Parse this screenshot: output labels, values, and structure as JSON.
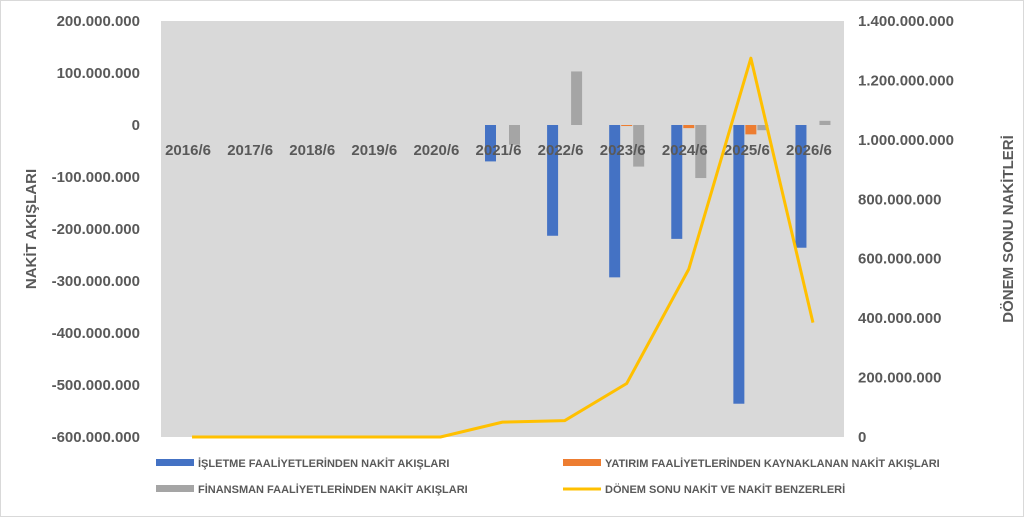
{
  "chart_data": {
    "type": "bar",
    "categories": [
      "2016/6",
      "2017/6",
      "2018/6",
      "2019/6",
      "2020/6",
      "2021/6",
      "2022/6",
      "2023/6",
      "2024/6",
      "2025/6",
      "2026/6"
    ],
    "ylabel": "NAKİT AKIŞLARI",
    "y2label": "DÖNEM SONU NAKİTLERİ",
    "ylim": [
      -600000000,
      200000000
    ],
    "y2lim": [
      0,
      1400000000
    ],
    "y_ticks": [
      {
        "value": 200000000,
        "label": "200.000.000"
      },
      {
        "value": 100000000,
        "label": "100.000.000"
      },
      {
        "value": 0,
        "label": "0"
      },
      {
        "value": -100000000,
        "label": "-100.000.000"
      },
      {
        "value": -200000000,
        "label": "-200.000.000"
      },
      {
        "value": -300000000,
        "label": "-300.000.000"
      },
      {
        "value": -400000000,
        "label": "-400.000.000"
      },
      {
        "value": -500000000,
        "label": "-500.000.000"
      },
      {
        "value": -600000000,
        "label": "-600.000.000"
      }
    ],
    "y2_ticks": [
      {
        "value": 1400000000,
        "label": "1.400.000.000"
      },
      {
        "value": 1200000000,
        "label": "1.200.000.000"
      },
      {
        "value": 1000000000,
        "label": "1.000.000.000"
      },
      {
        "value": 800000000,
        "label": "800.000.000"
      },
      {
        "value": 600000000,
        "label": "600.000.000"
      },
      {
        "value": 400000000,
        "label": "400.000.000"
      },
      {
        "value": 200000000,
        "label": "200.000.000"
      },
      {
        "value": 0,
        "label": "0"
      }
    ],
    "series": [
      {
        "name": "İŞLETME FAALİYETLERİNDEN NAKİT AKIŞLARI",
        "kind": "bar",
        "axis": "left",
        "color": "#4472c4",
        "values": [
          0,
          0,
          0,
          0,
          0,
          -70000000,
          -213000000,
          -293000000,
          -219000000,
          -536000000,
          -236000000
        ]
      },
      {
        "name": "YATIRIM FAALİYETLERİNDEN KAYNAKLANAN NAKİT AKIŞLARI",
        "kind": "bar",
        "axis": "left",
        "color": "#ed7d31",
        "values": [
          0,
          0,
          0,
          0,
          0,
          0,
          0,
          -2000000,
          -6000000,
          -18000000,
          0
        ]
      },
      {
        "name": "FİNANSMAN FAALİYETLERİNDEN NAKİT AKIŞLARI",
        "kind": "bar",
        "axis": "left",
        "color": "#a5a5a5",
        "values": [
          0,
          0,
          0,
          0,
          0,
          -38000000,
          103000000,
          -80000000,
          -102000000,
          -10000000,
          8000000
        ]
      },
      {
        "name": "DÖNEM SONU NAKİT VE NAKİT BENZERLERİ",
        "kind": "line",
        "axis": "right",
        "color": "#ffc000",
        "values": [
          0,
          0,
          0,
          0,
          0,
          50000000,
          55000000,
          180000000,
          565000000,
          1275000000,
          385000000
        ]
      }
    ],
    "legend_position": "bottom",
    "grid": false,
    "plot_background": "#d9d9d9"
  }
}
